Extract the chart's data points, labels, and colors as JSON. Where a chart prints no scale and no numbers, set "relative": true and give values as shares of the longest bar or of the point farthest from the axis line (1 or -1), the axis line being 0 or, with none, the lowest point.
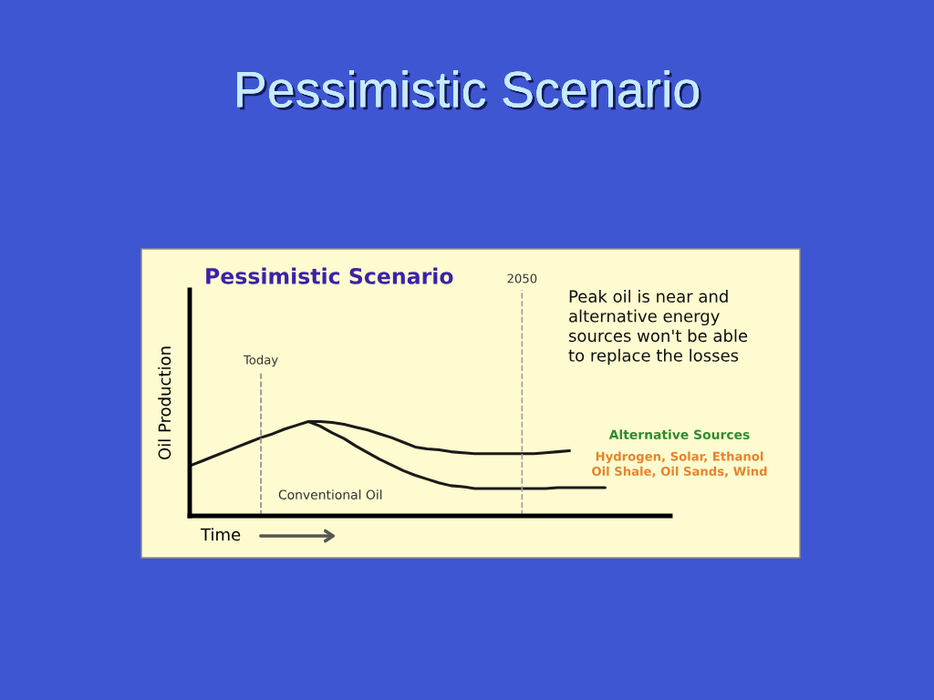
{
  "chart_data": {
    "type": "line",
    "title": "Pessimistic Scenario",
    "subtitle": "Pessimistic Scenario",
    "xlabel": "Time",
    "ylabel": "Oil Production",
    "relative": true,
    "categories": [
      null,
      null,
      null,
      null,
      null,
      null,
      null,
      null,
      null,
      null,
      null,
      null,
      null,
      null,
      null,
      null,
      null,
      null,
      null,
      null,
      null,
      null,
      null,
      null,
      null,
      null,
      null,
      null,
      null,
      null,
      null,
      null,
      null,
      null,
      null,
      null
    ],
    "series": [
      {
        "name": "Conventional Oil",
        "color": "#1a1a1a",
        "values": [
          0.53,
          0.58,
          0.63,
          0.68,
          0.73,
          0.78,
          0.83,
          0.87,
          0.92,
          0.96,
          1.0,
          0.95,
          0.88,
          0.82,
          0.74,
          0.67,
          0.6,
          0.54,
          0.48,
          0.43,
          0.39,
          0.35,
          0.32,
          0.31,
          0.29,
          0.29,
          0.29,
          0.29,
          0.29,
          0.29,
          0.29,
          0.3,
          0.3,
          0.3,
          0.3,
          0.3
        ]
      },
      {
        "color": "#1a1a1a",
        "values": [
          null,
          null,
          null,
          null,
          null,
          null,
          null,
          null,
          null,
          null,
          1.0,
          1.0,
          0.99,
          0.97,
          0.94,
          0.91,
          0.87,
          0.83,
          0.78,
          0.73,
          0.71,
          0.7,
          0.68,
          0.67,
          0.66,
          0.66,
          0.66,
          0.66,
          0.66,
          0.66,
          0.67,
          0.68,
          0.69,
          null,
          null,
          null
        ]
      }
    ],
    "annotations": [
      "Today",
      "2050",
      "Peak oil is near and\nalternative energy\nsources won't be able\nto replace the losses",
      "Alternative Sources",
      "Hydrogen, Solar, Ethanol\nOil Shale, Oil Sands, Wind"
    ]
  }
}
